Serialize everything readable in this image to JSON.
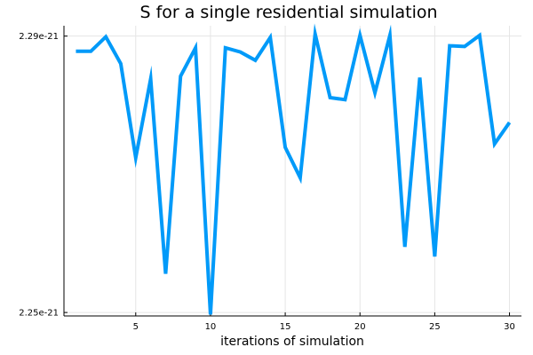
{
  "chart_data": {
    "type": "line",
    "title": "S for a single residential simulation",
    "xlabel": "iterations of simulation",
    "ylabel": "",
    "xlim": [
      0.2,
      30.8
    ],
    "ylim": [
      2.2495e-21,
      2.2915e-21
    ],
    "x_ticks": [
      5,
      10,
      15,
      20,
      25,
      30
    ],
    "x_tick_labels": [
      "5",
      "10",
      "15",
      "20",
      "25",
      "30"
    ],
    "y_ticks": [
      2.25e-21,
      2.29e-21
    ],
    "y_tick_labels": [
      "2.25e-21",
      "2.29e-21"
    ],
    "grid": true,
    "legend": "none",
    "series_color": "#009AF9",
    "grid_color": "#E5E5E5",
    "x": [
      1,
      2,
      3,
      4,
      5,
      6,
      7,
      8,
      9,
      10,
      11,
      12,
      13,
      14,
      15,
      16,
      17,
      18,
      19,
      20,
      21,
      22,
      23,
      24,
      25,
      26,
      27,
      28,
      29,
      30
    ],
    "series": [
      {
        "values": [
          2.2878e-21,
          2.2878e-21,
          2.2899e-21,
          2.286e-21,
          2.2724e-21,
          2.2838e-21,
          2.2556e-21,
          2.2842e-21,
          2.2883e-21,
          2.2497e-21,
          2.2883e-21,
          2.2877e-21,
          2.2865e-21,
          2.2898e-21,
          2.2739e-21,
          2.2695e-21,
          2.2903e-21,
          2.2811e-21,
          2.2808e-21,
          2.2901e-21,
          2.2818e-21,
          2.2901e-21,
          2.2595e-21,
          2.284e-21,
          2.2581e-21,
          2.2886e-21,
          2.2885e-21,
          2.2901e-21,
          2.2744e-21,
          2.2775e-21
        ]
      }
    ]
  }
}
